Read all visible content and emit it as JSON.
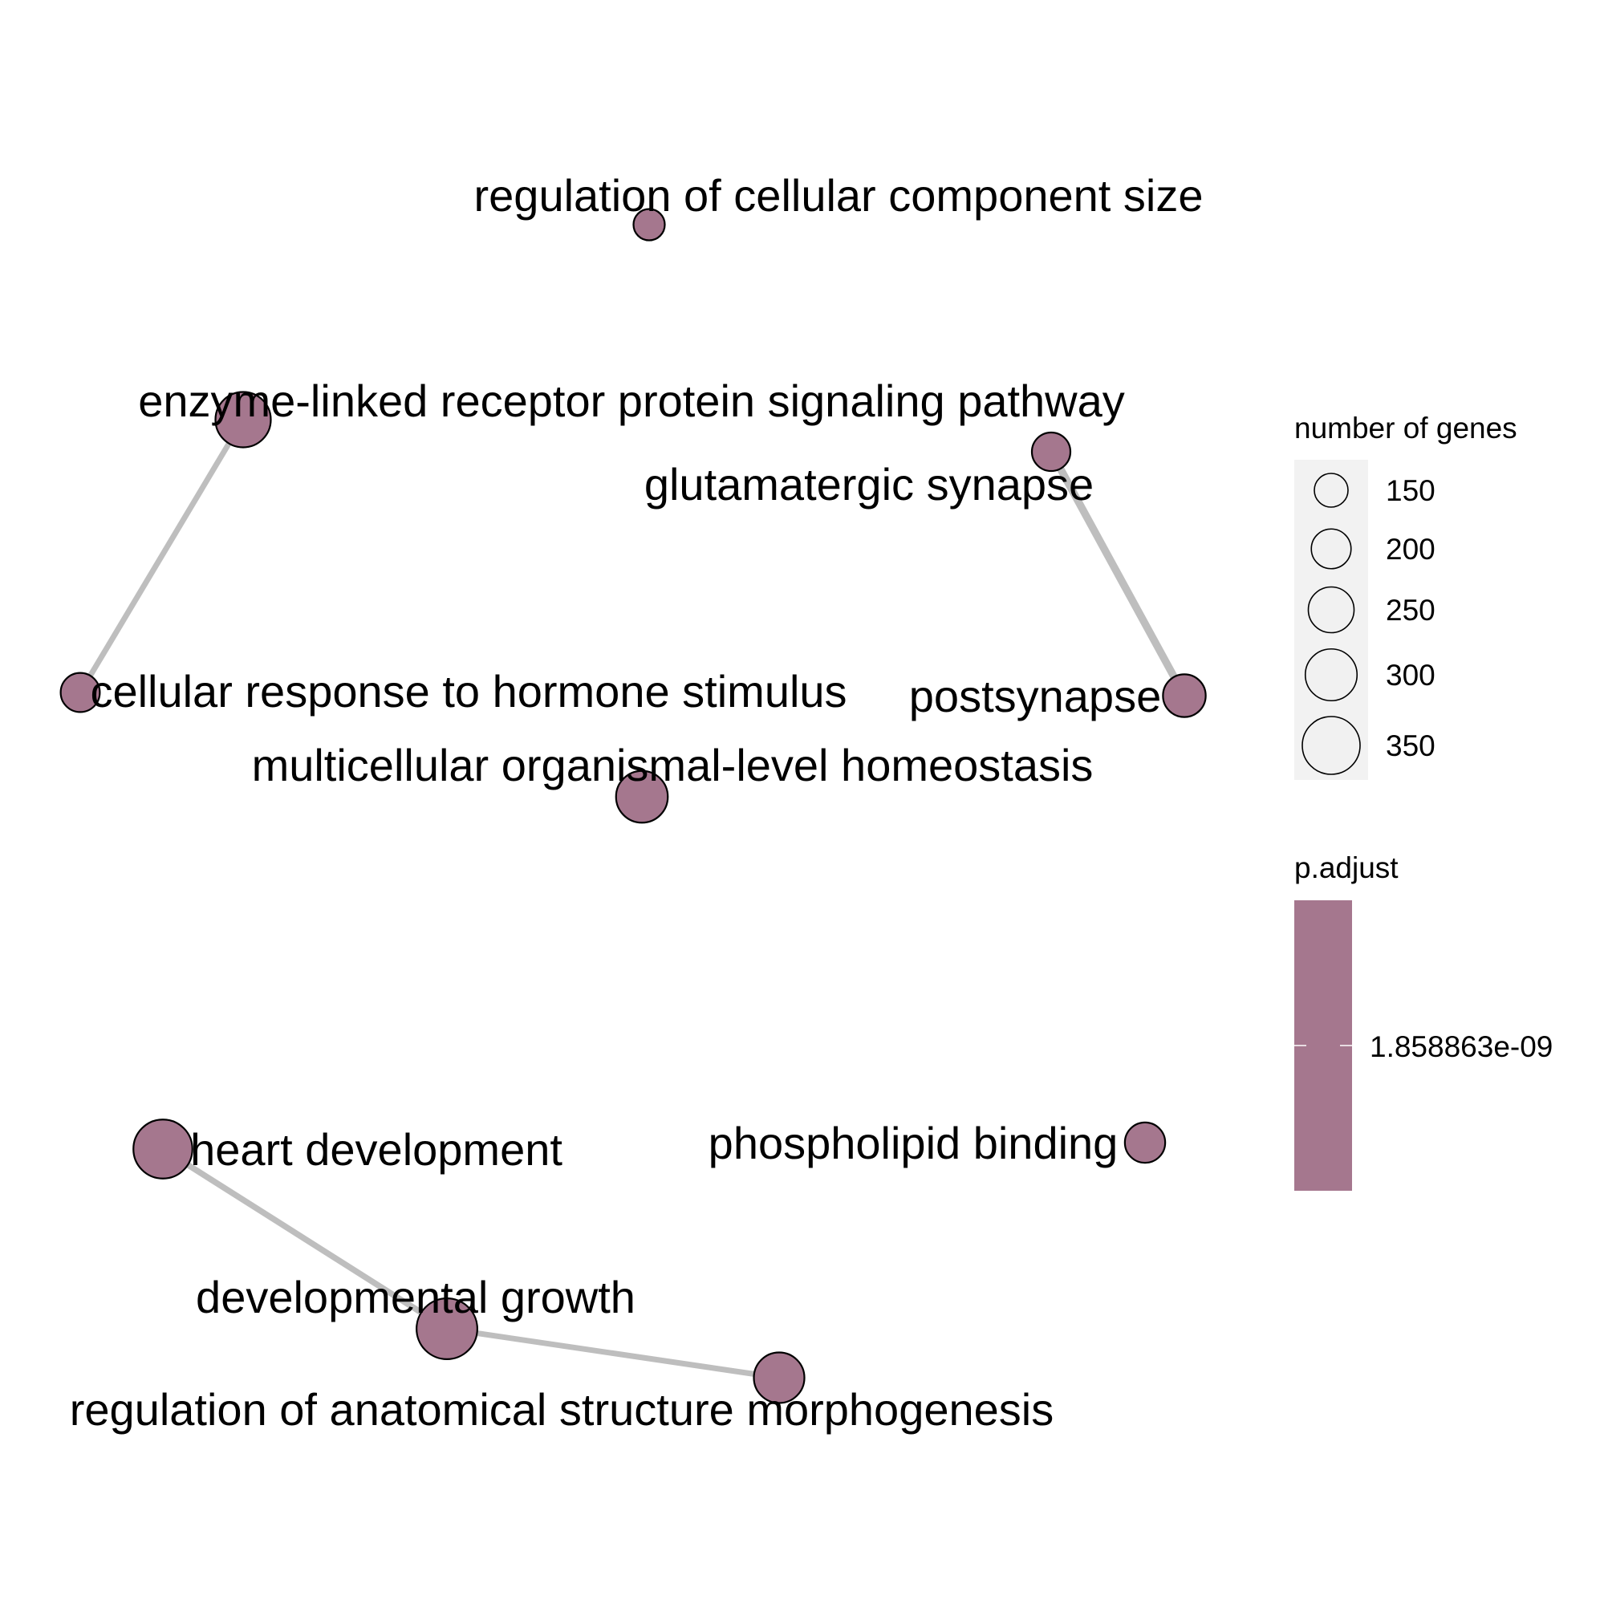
{
  "network": {
    "nodes": [
      {
        "id": "regulation_of_cellular_component_size",
        "label": "regulation of cellular component size",
        "size": 130
      },
      {
        "id": "enzyme_linked_receptor",
        "label": "enzyme-linked receptor protein signaling pathway",
        "size": 330
      },
      {
        "id": "glutamatergic_synapse",
        "label": "glutamatergic synapse",
        "size": 190
      },
      {
        "id": "cellular_response_to_hormone",
        "label": "cellular response to hormone stimulus",
        "size": 195
      },
      {
        "id": "postsynapse",
        "label": "postsynapse",
        "size": 225
      },
      {
        "id": "multicellular_homeostasis",
        "label": "multicellular organismal-level homeostasis",
        "size": 300
      },
      {
        "id": "heart_development",
        "label": "heart development",
        "size": 360
      },
      {
        "id": "phospholipid_binding",
        "label": "phospholipid binding",
        "size": 205
      },
      {
        "id": "developmental_growth",
        "label": "developmental growth",
        "size": 375
      },
      {
        "id": "regulation_of_anatomical_morphogenesis",
        "label": "regulation of anatomical structure morphogenesis",
        "size": 290
      }
    ],
    "edges": [
      {
        "source": "enzyme_linked_receptor",
        "target": "cellular_response_to_hormone",
        "weight": 0.3
      },
      {
        "source": "glutamatergic_synapse",
        "target": "postsynapse",
        "weight": 0.55
      },
      {
        "source": "heart_development",
        "target": "developmental_growth",
        "weight": 0.35
      },
      {
        "source": "developmental_growth",
        "target": "regulation_of_anatomical_morphogenesis",
        "weight": 0.3
      }
    ]
  },
  "node_color": "#a5778e",
  "edge_color": "#bebebe",
  "legend": {
    "size_title": "number of genes",
    "size_entries": [
      {
        "label": "150",
        "value": 150
      },
      {
        "label": "200",
        "value": 200
      },
      {
        "label": "250",
        "value": 250
      },
      {
        "label": "300",
        "value": 300
      },
      {
        "label": "350",
        "value": 350
      }
    ],
    "color_title": "p.adjust",
    "color_tick": "1.858863e-09"
  }
}
